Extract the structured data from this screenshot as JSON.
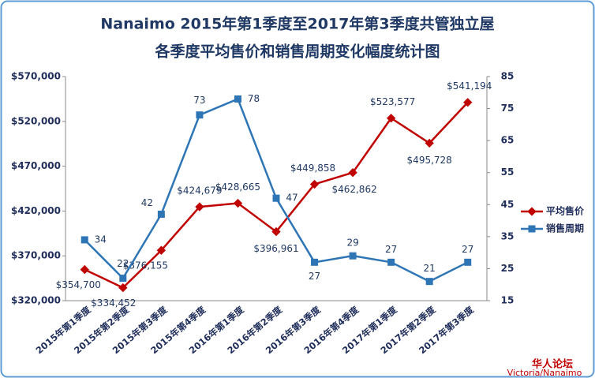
{
  "chart_data": {
    "type": "line",
    "title": "Nanaimo 2015年第1季度至2017年第3季度共管独立屋",
    "subtitle": "各季度平均售价和销售周期变化幅度统计图",
    "categories": [
      "2015年第1季度",
      "2015年第2季度",
      "2015年第3季度",
      "2015年第4季度",
      "2016年第1季度",
      "2016年第2季度",
      "2016年第3季度",
      "2016年第4季度",
      "2017年第1季度",
      "2017年第2季度",
      "2017年第3季度"
    ],
    "series": [
      {
        "name": "平均售价",
        "color": "#c00000",
        "values": [
          354700,
          334452,
          376155,
          424679,
          428665,
          396961,
          449858,
          462862,
          523577,
          495728,
          541194
        ],
        "value_labels": [
          "$354,700",
          "$334,452",
          "$376,155",
          "$424,679",
          "$428,665",
          "$396,961",
          "$449,858",
          "$462,862",
          "$523,577",
          "$495,728",
          "$541,194"
        ]
      },
      {
        "name": "销售周期",
        "color": "#2e75b6",
        "axis": "y2",
        "values": [
          34,
          22,
          42,
          73,
          78,
          47,
          27,
          29,
          27,
          21,
          27
        ]
      }
    ],
    "ylim": [
      320000,
      570000
    ],
    "yticks": [
      {
        "value": 320000,
        "label": "$320,000"
      },
      {
        "value": 370000,
        "label": "$370,000"
      },
      {
        "value": 420000,
        "label": "$420,000"
      },
      {
        "value": 470000,
        "label": "$470,000"
      },
      {
        "value": 520000,
        "label": "$520,000"
      },
      {
        "value": 570000,
        "label": "$570,000"
      }
    ],
    "y2lim": [
      15,
      85
    ],
    "y2ticks": [
      15,
      25,
      35,
      45,
      55,
      65,
      75,
      85
    ],
    "grid": false,
    "legend": "right",
    "logo": [
      "华人论坛",
      "Victoria/Nanaimo"
    ]
  }
}
